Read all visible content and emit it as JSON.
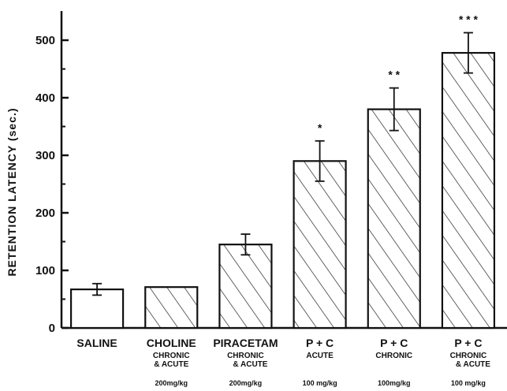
{
  "chart_data": {
    "type": "bar",
    "title": "",
    "xlabel": "",
    "ylabel": "RETENTION LATENCY (sec.)",
    "ylim": [
      0,
      500
    ],
    "yticks": [
      0,
      100,
      200,
      300,
      400,
      500
    ],
    "grid": false,
    "categories": [
      {
        "lines": [
          "SALINE"
        ],
        "dose": ""
      },
      {
        "lines": [
          "CHOLINE",
          "CHRONIC",
          "& ACUTE"
        ],
        "dose": "200mg/kg"
      },
      {
        "lines": [
          "PIRACETAM",
          "CHRONIC",
          "& ACUTE"
        ],
        "dose": "200mg/kg"
      },
      {
        "lines": [
          "P + C",
          "ACUTE"
        ],
        "dose": "100 mg/kg"
      },
      {
        "lines": [
          "P + C",
          "CHRONIC"
        ],
        "dose": "100mg/kg"
      },
      {
        "lines": [
          "P + C",
          "CHRONIC",
          "& ACUTE"
        ],
        "dose": "100 mg/kg"
      }
    ],
    "values": [
      67,
      71,
      145,
      290,
      380,
      478
    ],
    "errors": [
      10,
      0,
      18,
      35,
      37,
      35
    ],
    "hatched": [
      false,
      true,
      true,
      true,
      true,
      true
    ],
    "significance": [
      "",
      "",
      "",
      "*",
      "* *",
      "* * *"
    ],
    "colors": {
      "bar_fill": "#ffffff",
      "stroke": "#111111",
      "hatch": "#222222"
    }
  }
}
